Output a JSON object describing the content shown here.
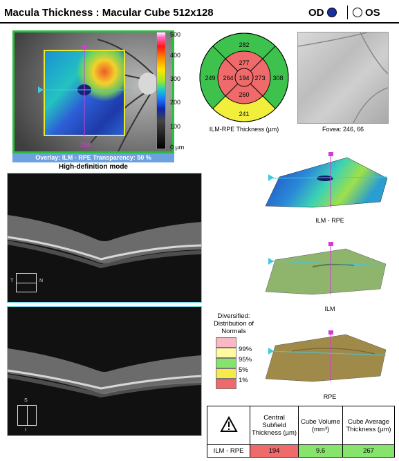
{
  "header": {
    "title": "Macula Thickness : Macular Cube 512x128",
    "od_label": "OD",
    "os_label": "OS"
  },
  "fundus": {
    "overlay_caption": "Overlay: ILM - RPE  Transparency: 50 %",
    "mode_caption": "High-definition mode",
    "marker_value": "256",
    "scale_ticks": [
      "500",
      "400",
      "300",
      "200",
      "100",
      "0 µm"
    ]
  },
  "etdrs": {
    "caption": "ILM-RPE Thickness (µm)",
    "sectors": {
      "outer_superior": "282",
      "outer_nasal": "249",
      "outer_temporal": "308",
      "outer_inferior": "241",
      "inner_superior": "277",
      "inner_nasal": "264",
      "inner_temporal": "273",
      "inner_inferior": "260",
      "center": "194"
    },
    "colors": {
      "green": "#3ec24e",
      "red": "#ef6a6a",
      "yellow": "#f2ee3c"
    }
  },
  "slo": {
    "caption": "Fovea: 246, 66"
  },
  "surfaces": {
    "ilm_rpe_label": "ILM - RPE",
    "ilm_label": "ILM",
    "rpe_label": "RPE"
  },
  "oct_scans": {
    "horizontal": {
      "left_dir": "T",
      "right_dir": "N"
    },
    "vertical": {
      "top_dir": "S",
      "bottom_dir": "I"
    }
  },
  "legend": {
    "title": "Diversified: Distribution of Normals",
    "items": [
      {
        "label": "99%",
        "color": "#f8b8c6"
      },
      {
        "label": "95%",
        "color": "#fffaa0"
      },
      {
        "label": "5%",
        "color": "#86e36c"
      },
      {
        "label": "1%",
        "color": "#f5ea4a"
      },
      {
        "label": "",
        "color": "#ef6a6a"
      }
    ]
  },
  "results": {
    "headers": [
      "Central Subfield Thickness (µm)",
      "Cube Volume (mm³)",
      "Cube Average Thickness (µm)"
    ],
    "row_label": "ILM - RPE",
    "values": [
      "194",
      "9.6",
      "267"
    ],
    "value_colors": [
      "#ef6a6a",
      "#86e36c",
      "#86e36c"
    ]
  }
}
